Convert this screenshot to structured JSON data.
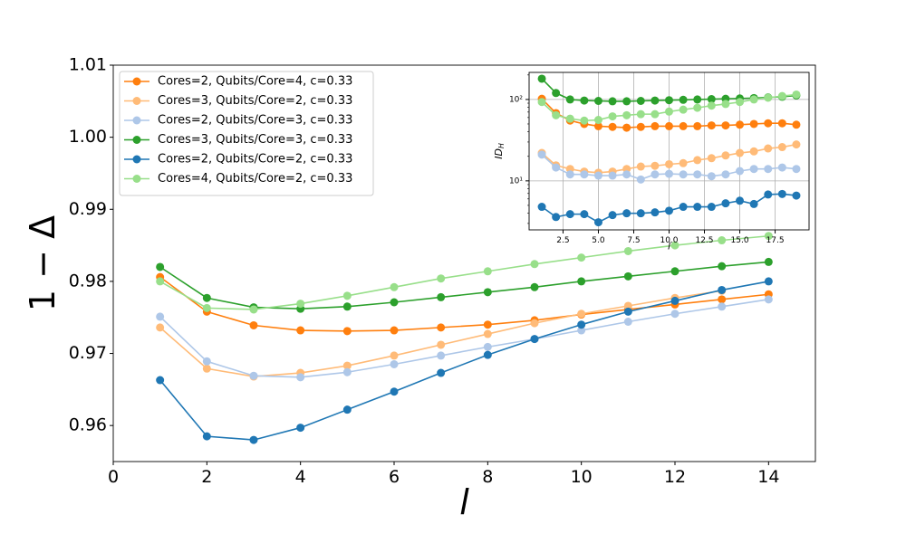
{
  "chart_data": [
    {
      "type": "line",
      "xlabel": "l",
      "ylabel": "1 − Δ",
      "x": [
        1,
        2,
        3,
        4,
        5,
        6,
        7,
        8,
        9,
        10,
        11,
        12,
        13,
        14
      ],
      "xlim": [
        0,
        15
      ],
      "ylim": [
        0.955,
        1.01
      ],
      "xticks": [
        0,
        2,
        4,
        6,
        8,
        10,
        12,
        14
      ],
      "yticks": [
        0.96,
        0.97,
        0.98,
        0.99,
        {
          "value": 1,
          "label": "1.00"
        },
        1.01
      ],
      "legend": "upper left",
      "series": [
        {
          "name": "Cores=2, Qubits/Core=4, c=0.33",
          "color": "#ff7f0e",
          "values": [
            0.9806,
            0.9758,
            0.9739,
            0.9732,
            0.9731,
            0.9732,
            0.9736,
            0.974,
            0.9746,
            0.9754,
            0.9761,
            0.9768,
            0.9775,
            0.9782
          ]
        },
        {
          "name": "Cores=3, Qubits/Core=2, c=0.33",
          "color": "#ffbb78",
          "values": [
            0.9736,
            0.9679,
            0.9668,
            0.9673,
            0.9683,
            0.9697,
            0.9712,
            0.9727,
            0.9742,
            0.9755,
            0.9766,
            0.9777,
            0.9787,
            null
          ]
        },
        {
          "name": "Cores=2, Qubits/Core=3, c=0.33",
          "color": "#aec7e8",
          "values": [
            0.9751,
            0.9689,
            0.9669,
            0.9667,
            0.9674,
            0.9685,
            0.9697,
            0.9709,
            0.972,
            0.9732,
            0.9744,
            0.9755,
            0.9765,
            0.9775
          ]
        },
        {
          "name": "Cores=3, Qubits/Core=3, c=0.33",
          "color": "#2ca02c",
          "values": [
            0.982,
            0.9777,
            0.9764,
            0.9762,
            0.9765,
            0.9771,
            0.9778,
            0.9785,
            0.9792,
            0.98,
            0.9807,
            0.9814,
            0.9821,
            0.9827
          ]
        },
        {
          "name": "Cores=2, Qubits/Core=2, c=0.33",
          "color": "#1f77b4",
          "values": [
            0.9663,
            0.9585,
            0.958,
            0.9597,
            0.9622,
            0.9647,
            0.9673,
            0.9698,
            0.972,
            0.974,
            0.9758,
            0.9773,
            0.9788,
            0.98
          ]
        },
        {
          "name": "Cores=4, Qubits/Core=2, c=0.33",
          "color": "#98df8a",
          "values": [
            0.98,
            0.9763,
            0.9761,
            0.9769,
            0.978,
            0.9792,
            0.9804,
            0.9814,
            0.9824,
            0.9833,
            0.9842,
            0.985,
            0.9857,
            0.9863
          ]
        }
      ]
    },
    {
      "type": "line",
      "xlabel": "l",
      "ylabel": "ID",
      "ylabel_subscript": "H",
      "x": [
        1,
        2,
        3,
        4,
        5,
        6,
        7,
        8,
        9,
        10,
        11,
        12,
        13,
        14,
        15,
        16,
        17,
        18,
        19
      ],
      "xlim": [
        0.1,
        19.9
      ],
      "ylim": [
        2.5,
        215
      ],
      "log_y": true,
      "grid": true,
      "xticks": [
        2.5,
        {
          "value": 5,
          "label": "5.0"
        },
        7.5,
        {
          "value": 10,
          "label": "10.0"
        },
        12.5,
        {
          "value": 15,
          "label": "15.0"
        },
        17.5
      ],
      "yticks": [
        {
          "value": 10,
          "label": "10¹"
        },
        {
          "value": 100,
          "label": "10²"
        }
      ],
      "series": [
        {
          "color": "#ff7f0e",
          "values": [
            102,
            68,
            55,
            50,
            47,
            46,
            45,
            46,
            47,
            47,
            47,
            47,
            48,
            48,
            49,
            50,
            51,
            51,
            49
          ]
        },
        {
          "color": "#ffbb78",
          "values": [
            22,
            15.5,
            14,
            13,
            12.6,
            13,
            14,
            15,
            15.3,
            16,
            16.5,
            18,
            19,
            20.5,
            22,
            23,
            25,
            26,
            28
          ]
        },
        {
          "color": "#aec7e8",
          "values": [
            21,
            14.6,
            12,
            12,
            11.6,
            11.6,
            12,
            10.4,
            12,
            12.2,
            12,
            12,
            11.4,
            12,
            13.2,
            14,
            14,
            14.6,
            14
          ]
        },
        {
          "color": "#2ca02c",
          "values": [
            180,
            120,
            100,
            97,
            96,
            95,
            95,
            96,
            97,
            98,
            99,
            100,
            101,
            102,
            103,
            104,
            106,
            108,
            112
          ]
        },
        {
          "color": "#1f77b4",
          "values": [
            4.8,
            3.6,
            3.9,
            3.9,
            3.1,
            3.8,
            4.0,
            4.0,
            4.1,
            4.3,
            4.8,
            4.8,
            4.8,
            5.3,
            5.7,
            5.2,
            6.8,
            6.9,
            6.6
          ]
        },
        {
          "color": "#98df8a",
          "values": [
            93,
            64,
            58,
            55,
            56,
            62,
            64,
            66,
            66,
            71,
            75,
            79,
            84,
            88,
            93,
            100,
            105,
            110,
            115
          ]
        }
      ]
    }
  ]
}
